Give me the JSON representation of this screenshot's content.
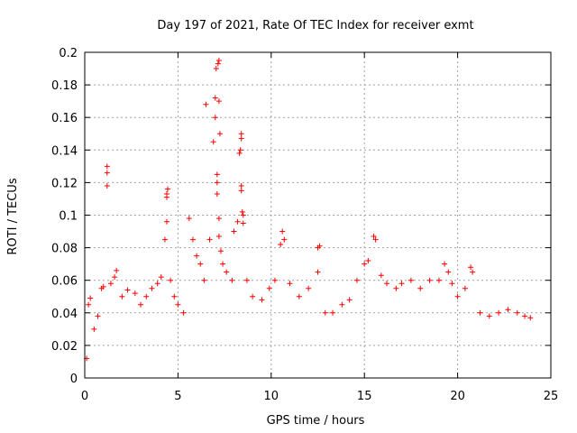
{
  "chart_data": {
    "type": "scatter",
    "title": "Day 197 of 2021, Rate Of TEC Index for receiver exmt",
    "xlabel": "GPS time / hours",
    "ylabel": "ROTI / TECUs",
    "xlim": [
      0,
      25
    ],
    "ylim": [
      0,
      0.2
    ],
    "x_ticks": [
      "0",
      "5",
      "10",
      "15",
      "20",
      "25"
    ],
    "y_ticks": [
      "0",
      "0.02",
      "0.04",
      "0.06",
      "0.08",
      "0.1",
      "0.12",
      "0.14",
      "0.16",
      "0.18",
      "0.2"
    ],
    "grid": true,
    "marker": "+",
    "color": "#ff0000",
    "series": [
      {
        "points": [
          [
            0.1,
            0.012
          ],
          [
            0.2,
            0.045
          ],
          [
            0.3,
            0.049
          ],
          [
            0.5,
            0.03
          ],
          [
            0.7,
            0.038
          ],
          [
            0.9,
            0.055
          ],
          [
            1.0,
            0.056
          ],
          [
            1.2,
            0.13
          ],
          [
            1.2,
            0.126
          ],
          [
            1.2,
            0.118
          ],
          [
            1.4,
            0.058
          ],
          [
            1.6,
            0.062
          ],
          [
            1.7,
            0.066
          ],
          [
            2.0,
            0.05
          ],
          [
            2.3,
            0.054
          ],
          [
            2.7,
            0.052
          ],
          [
            3.0,
            0.045
          ],
          [
            3.3,
            0.05
          ],
          [
            3.6,
            0.055
          ],
          [
            3.9,
            0.058
          ],
          [
            4.1,
            0.062
          ],
          [
            4.3,
            0.085
          ],
          [
            4.4,
            0.096
          ],
          [
            4.4,
            0.111
          ],
          [
            4.4,
            0.113
          ],
          [
            4.45,
            0.116
          ],
          [
            4.6,
            0.06
          ],
          [
            4.8,
            0.05
          ],
          [
            5.0,
            0.045
          ],
          [
            5.3,
            0.04
          ],
          [
            5.6,
            0.098
          ],
          [
            5.8,
            0.085
          ],
          [
            6.0,
            0.075
          ],
          [
            6.2,
            0.07
          ],
          [
            6.4,
            0.06
          ],
          [
            6.5,
            0.168
          ],
          [
            6.7,
            0.085
          ],
          [
            6.9,
            0.145
          ],
          [
            7.0,
            0.16
          ],
          [
            7.0,
            0.172
          ],
          [
            7.05,
            0.19
          ],
          [
            7.1,
            0.125
          ],
          [
            7.1,
            0.12
          ],
          [
            7.1,
            0.113
          ],
          [
            7.15,
            0.193
          ],
          [
            7.2,
            0.195
          ],
          [
            7.2,
            0.17
          ],
          [
            7.25,
            0.15
          ],
          [
            7.2,
            0.098
          ],
          [
            7.2,
            0.087
          ],
          [
            7.3,
            0.078
          ],
          [
            7.4,
            0.07
          ],
          [
            7.6,
            0.065
          ],
          [
            7.9,
            0.06
          ],
          [
            8.0,
            0.09
          ],
          [
            8.2,
            0.096
          ],
          [
            8.3,
            0.138
          ],
          [
            8.35,
            0.14
          ],
          [
            8.4,
            0.147
          ],
          [
            8.4,
            0.15
          ],
          [
            8.4,
            0.115
          ],
          [
            8.4,
            0.118
          ],
          [
            8.45,
            0.102
          ],
          [
            8.5,
            0.1
          ],
          [
            8.5,
            0.095
          ],
          [
            8.7,
            0.06
          ],
          [
            9.0,
            0.05
          ],
          [
            9.5,
            0.048
          ],
          [
            9.9,
            0.055
          ],
          [
            10.2,
            0.06
          ],
          [
            10.5,
            0.082
          ],
          [
            10.6,
            0.09
          ],
          [
            10.7,
            0.085
          ],
          [
            11.0,
            0.058
          ],
          [
            11.5,
            0.05
          ],
          [
            12.0,
            0.055
          ],
          [
            12.5,
            0.08
          ],
          [
            12.6,
            0.081
          ],
          [
            12.5,
            0.065
          ],
          [
            12.9,
            0.04
          ],
          [
            13.3,
            0.04
          ],
          [
            13.8,
            0.045
          ],
          [
            14.2,
            0.048
          ],
          [
            14.6,
            0.06
          ],
          [
            15.0,
            0.07
          ],
          [
            15.2,
            0.072
          ],
          [
            15.5,
            0.087
          ],
          [
            15.6,
            0.085
          ],
          [
            15.9,
            0.063
          ],
          [
            16.2,
            0.058
          ],
          [
            16.7,
            0.055
          ],
          [
            17.0,
            0.058
          ],
          [
            17.5,
            0.06
          ],
          [
            18.0,
            0.055
          ],
          [
            18.5,
            0.06
          ],
          [
            19.0,
            0.06
          ],
          [
            19.3,
            0.07
          ],
          [
            19.5,
            0.065
          ],
          [
            19.7,
            0.058
          ],
          [
            20.0,
            0.05
          ],
          [
            20.4,
            0.055
          ],
          [
            20.7,
            0.068
          ],
          [
            20.8,
            0.065
          ],
          [
            21.2,
            0.04
          ],
          [
            21.7,
            0.038
          ],
          [
            22.2,
            0.04
          ],
          [
            22.7,
            0.042
          ],
          [
            23.2,
            0.04
          ],
          [
            23.6,
            0.038
          ],
          [
            23.9,
            0.037
          ]
        ]
      }
    ]
  }
}
